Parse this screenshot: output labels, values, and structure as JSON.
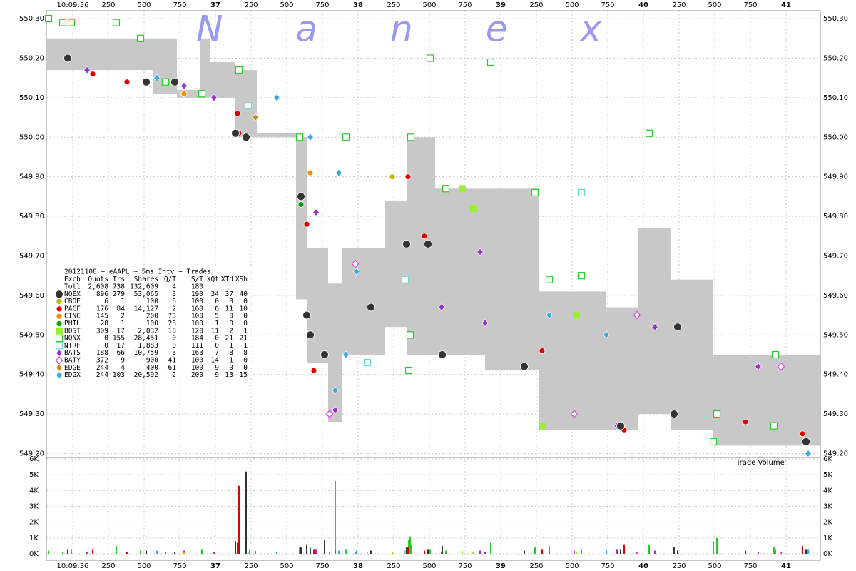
{
  "chart_data": {
    "type": "scatter",
    "watermark": "Nanex",
    "xlim": [
      35.815,
      41.24
    ],
    "xticks": [
      {
        "value": 36,
        "label": "10:09:36"
      },
      {
        "value": 36.25,
        "label": "250"
      },
      {
        "value": 36.5,
        "label": "500"
      },
      {
        "value": 36.75,
        "label": "750"
      },
      37,
      {
        "value": 37.25,
        "label": "250"
      },
      {
        "value": 37.5,
        "label": "500"
      },
      {
        "value": 37.75,
        "label": "750"
      },
      38,
      {
        "value": 38.25,
        "label": "250"
      },
      {
        "value": 38.5,
        "label": "500"
      },
      {
        "value": 38.75,
        "label": "750"
      },
      39,
      {
        "value": 39.25,
        "label": "250"
      },
      {
        "value": 39.5,
        "label": "500"
      },
      {
        "value": 39.75,
        "label": "750"
      },
      40,
      {
        "value": 40.25,
        "label": "250"
      },
      {
        "value": 40.5,
        "label": "500"
      },
      {
        "value": 40.75,
        "label": "750"
      },
      41
    ],
    "ylim": [
      549.19,
      550.32
    ],
    "yticks": [
      {
        "value": 550.3,
        "label": "550.30"
      },
      {
        "value": 550.2,
        "label": "550.20"
      },
      {
        "value": 550.1,
        "label": "550.10"
      },
      {
        "value": 550.0,
        "label": "550.00"
      },
      {
        "value": 549.9,
        "label": "549.90"
      },
      {
        "value": 549.8,
        "label": "549.80"
      },
      {
        "value": 549.7,
        "label": "549.70"
      },
      {
        "value": 549.6,
        "label": "549.60"
      },
      {
        "value": 549.5,
        "label": "549.50"
      },
      {
        "value": 549.4,
        "label": "549.40"
      },
      {
        "value": 549.3,
        "label": "549.30"
      },
      {
        "value": 549.2,
        "label": "549.20"
      }
    ],
    "grid": true,
    "volume_label": "Trade Volume",
    "volume_ylim": [
      0,
      6000
    ],
    "volume_yticks": [
      {
        "value": 6000,
        "label": "6K"
      },
      {
        "value": 5000,
        "label": "5K"
      },
      {
        "value": 4000,
        "label": "4K"
      },
      {
        "value": 3000,
        "label": "3K"
      },
      {
        "value": 2000,
        "label": "2K"
      },
      {
        "value": 1000,
        "label": "1K"
      },
      {
        "value": 0,
        "label": "0K"
      }
    ],
    "spread": {
      "color": "#c8c8c8",
      "x": [
        35.815,
        36.565,
        36.73,
        36.89,
        36.965,
        37.14,
        37.29,
        37.565,
        37.64,
        37.79,
        37.89,
        38.19,
        38.34,
        38.54,
        38.89,
        39.265,
        39.74,
        39.965,
        40.19,
        40.49,
        40.69
      ],
      "low": [
        550.17,
        550.11,
        550.1,
        550.1,
        550.1,
        550.0,
        550.0,
        549.59,
        549.43,
        549.28,
        549.45,
        549.52,
        549.45,
        549.45,
        549.41,
        549.26,
        549.26,
        549.3,
        549.26,
        549.22,
        549.22
      ],
      "high": [
        550.25,
        550.25,
        550.12,
        550.25,
        550.19,
        550.17,
        550.01,
        550.0,
        549.72,
        549.63,
        549.72,
        549.84,
        550.0,
        549.87,
        549.87,
        549.61,
        549.57,
        549.77,
        549.64,
        549.45,
        549.45
      ]
    },
    "stats": {
      "title": "20121108 ~ eAAPL ~ 5ms Intv ~ Trades",
      "header": [
        "Exch",
        "Quots",
        "Trs",
        "Shares",
        "Q/T",
        "S/T",
        "XQt",
        "XTd",
        "XSh"
      ],
      "total": [
        "Totl",
        "2,608",
        "738",
        "132,609",
        "4",
        "180"
      ],
      "rows": [
        [
          "896",
          "279",
          "53,065",
          "3",
          "190",
          "34",
          "37",
          "40"
        ],
        [
          "6",
          "1",
          "100",
          "6",
          "100",
          "0",
          "0",
          "0"
        ],
        [
          "176",
          "84",
          "14,127",
          "2",
          "168",
          "6",
          "11",
          "10"
        ],
        [
          "145",
          "2",
          "200",
          "73",
          "100",
          "5",
          "0",
          "0"
        ],
        [
          "28",
          "1",
          "100",
          "28",
          "100",
          "1",
          "0",
          "0"
        ],
        [
          "309",
          "17",
          "2,032",
          "18",
          "120",
          "11",
          "2",
          "1"
        ],
        [
          "0",
          "155",
          "28,451",
          "0",
          "184",
          "0",
          "21",
          "21"
        ],
        [
          "0",
          "17",
          "1,883",
          "0",
          "111",
          "0",
          "1",
          "1"
        ],
        [
          "188",
          "66",
          "10,759",
          "3",
          "163",
          "7",
          "8",
          "8"
        ],
        [
          "372",
          "9",
          "900",
          "41",
          "100",
          "14",
          "1",
          "0"
        ],
        [
          "244",
          "4",
          "400",
          "61",
          "100",
          "9",
          "0",
          "0"
        ],
        [
          "244",
          "103",
          "20,592",
          "2",
          "200",
          "9",
          "13",
          "15"
        ]
      ]
    },
    "series": [
      {
        "name": "NQEX",
        "color": "#333333",
        "marker": "dot",
        "filled": true,
        "x": [
          35.965,
          36.515,
          36.715,
          37.14,
          37.215,
          37.6,
          37.64,
          37.665,
          37.765,
          38.09,
          38.34,
          38.49,
          38.59,
          39.165,
          39.84,
          40.215,
          40.24,
          41.14
        ],
        "values": [
          550.2,
          550.14,
          550.14,
          550.01,
          550.0,
          549.85,
          549.55,
          549.5,
          549.45,
          549.57,
          549.73,
          549.73,
          549.45,
          549.42,
          549.27,
          549.3,
          549.52,
          549.23
        ],
        "volumes": [
          300,
          200,
          100,
          800,
          5200,
          400,
          600,
          300,
          900,
          200,
          400,
          300,
          500,
          200,
          300,
          400,
          200,
          300
        ]
      },
      {
        "name": "CBOE",
        "color": "#bbbb00",
        "marker": "circle",
        "filled": true,
        "x": [
          38.24
        ],
        "values": [
          549.9
        ],
        "volumes": [
          100
        ]
      },
      {
        "name": "PACF",
        "color": "#e00000",
        "marker": "circle",
        "filled": true,
        "x": [
          35.965,
          36.14,
          36.38,
          36.515,
          37.155,
          37.165,
          37.64,
          37.69,
          38.35,
          38.465,
          39.29,
          39.865,
          40.715,
          41.115
        ],
        "values": [
          550.2,
          550.16,
          550.14,
          550.14,
          550.06,
          550.01,
          549.78,
          549.41,
          549.9,
          549.75,
          549.46,
          549.26,
          549.28,
          549.25
        ],
        "volumes": [
          200,
          300,
          100,
          200,
          700,
          4300,
          500,
          300,
          400,
          200,
          300,
          600,
          200,
          500
        ]
      },
      {
        "name": "CINC",
        "color": "#f09000",
        "marker": "circle",
        "filled": true,
        "x": [
          36.78,
          37.665
        ],
        "values": [
          550.11,
          549.91
        ],
        "volumes": [
          100,
          100
        ]
      },
      {
        "name": "PHIL",
        "color": "#00a000",
        "marker": "circle",
        "filled": true,
        "x": [
          37.6
        ],
        "values": [
          549.83
        ],
        "volumes": [
          100
        ]
      },
      {
        "name": "BOST",
        "color": "#99ee33",
        "marker": "square",
        "filled": true,
        "x": [
          38.73,
          38.805,
          39.29,
          39.53
        ],
        "values": [
          549.87,
          549.82,
          549.27,
          549.55
        ],
        "volumes": [
          200,
          100,
          100,
          150
        ]
      },
      {
        "name": "NQNX",
        "color": "#22cc22",
        "marker": "square",
        "filled": false,
        "x": [
          35.83,
          35.93,
          35.99,
          36.305,
          36.475,
          36.65,
          36.905,
          37.165,
          37.59,
          37.915,
          38.355,
          38.365,
          38.37,
          38.505,
          38.615,
          38.93,
          39.24,
          39.34,
          39.565,
          40.04,
          40.49,
          40.515,
          40.915,
          40.925
        ],
        "values": [
          550.3,
          550.29,
          550.29,
          550.29,
          550.25,
          550.14,
          550.11,
          550.17,
          550.0,
          550.0,
          549.41,
          549.5,
          550.0,
          550.2,
          549.87,
          550.19,
          549.86,
          549.64,
          549.65,
          550.01,
          549.23,
          549.3,
          549.27,
          549.45
        ],
        "volumes": [
          200,
          100,
          300,
          500,
          200,
          100,
          300,
          1200,
          400,
          200,
          900,
          1100,
          600,
          300,
          200,
          700,
          400,
          500,
          300,
          600,
          800,
          1000,
          400,
          300
        ]
      },
      {
        "name": "NTRF",
        "color": "#66ddcc",
        "marker": "square",
        "filled": false,
        "x": [
          37.23,
          38.065,
          38.33,
          39.565
        ],
        "values": [
          550.08,
          549.43,
          549.64,
          549.86
        ],
        "volumes": [
          100,
          100,
          200,
          100
        ]
      },
      {
        "name": "BATS",
        "color": "#9933cc",
        "marker": "diamond",
        "filled": true,
        "x": [
          36.1,
          36.78,
          36.99,
          37.705,
          37.84,
          38.585,
          38.855,
          38.89,
          39.815,
          40.08,
          40.805
        ],
        "values": [
          550.17,
          550.13,
          550.1,
          549.81,
          549.31,
          549.57,
          549.71,
          549.53,
          549.27,
          549.52,
          549.42
        ],
        "volumes": [
          100,
          200,
          100,
          300,
          200,
          100,
          200,
          100,
          300,
          200,
          100
        ]
      },
      {
        "name": "BATY",
        "color": "#dd44dd",
        "marker": "diamond",
        "filled": false,
        "x": [
          37.8,
          37.98,
          39.515,
          39.955,
          40.965
        ],
        "values": [
          549.3,
          549.68,
          549.3,
          549.55,
          549.42
        ],
        "volumes": [
          100,
          100,
          200,
          100,
          100
        ]
      },
      {
        "name": "EDGE",
        "color": "#cc8800",
        "marker": "diamond",
        "filled": true,
        "x": [
          36.775,
          37.28
        ],
        "values": [
          550.11,
          550.05
        ],
        "volumes": [
          100,
          200
        ]
      },
      {
        "name": "EDGX",
        "color": "#33aadd",
        "marker": "diamond",
        "filled": true,
        "x": [
          36.59,
          37.24,
          37.43,
          37.665,
          37.84,
          37.865,
          37.915,
          37.99,
          39.34,
          39.74,
          41.155
        ],
        "values": [
          550.15,
          550.08,
          550.1,
          550.0,
          549.36,
          549.91,
          549.45,
          549.66,
          549.55,
          549.5,
          549.2
        ],
        "volumes": [
          200,
          300,
          100,
          400,
          4600,
          200,
          300,
          200,
          100,
          200,
          300
        ]
      }
    ]
  }
}
